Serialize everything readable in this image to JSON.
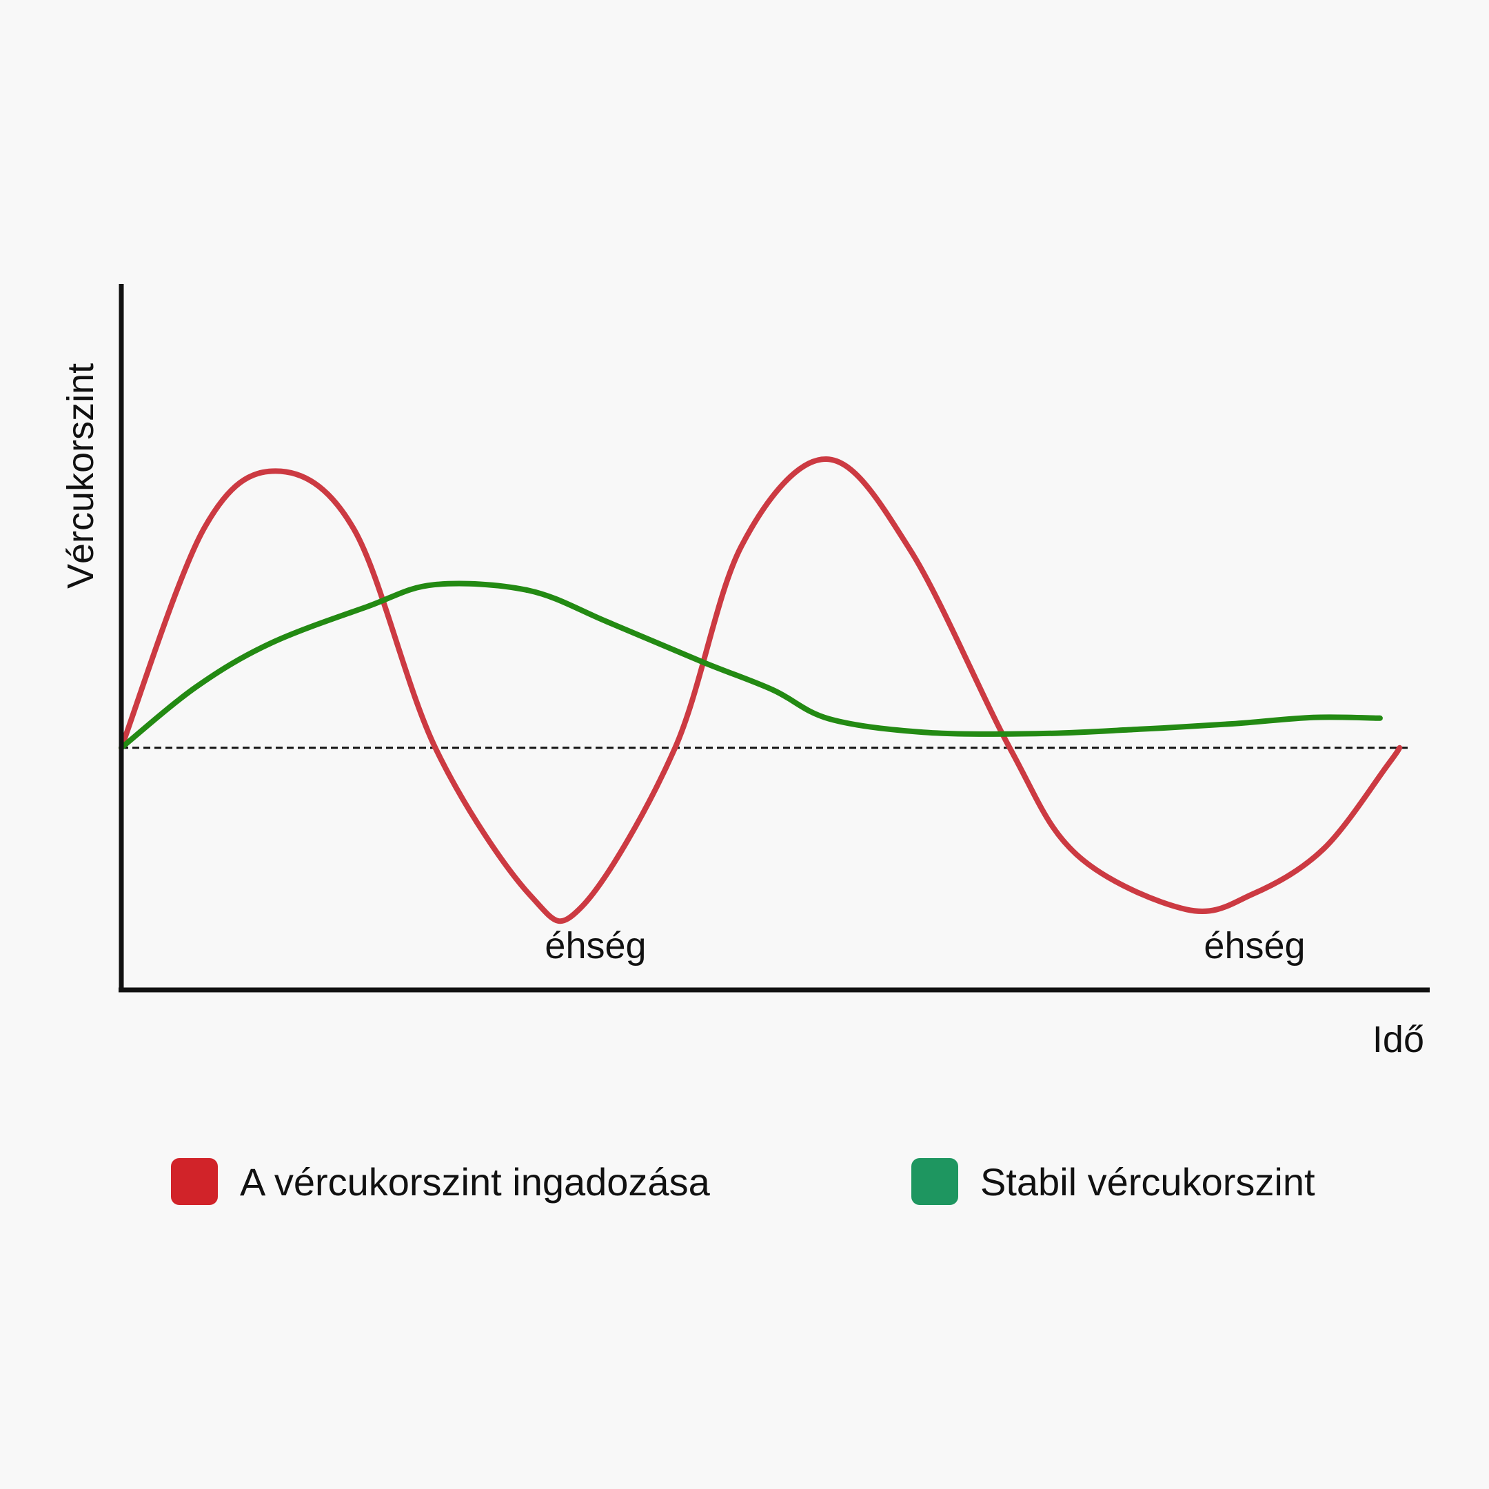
{
  "chart_data": {
    "type": "line",
    "title": "",
    "xlabel": "Idő",
    "ylabel": "Vércukorszint",
    "xlim": [
      0,
      100
    ],
    "ylim": [
      0,
      100
    ],
    "grid": false,
    "legend_position": "bottom",
    "reference_line": {
      "y": 34.3,
      "style": "dashed",
      "color": "#111111"
    },
    "series": [
      {
        "name": "A vércukorszint ingadozása",
        "color": "#cc3a42",
        "x": [
          0,
          6.3,
          11.8,
          17.8,
          24,
          31.3,
          35.2,
          42.3,
          47.4,
          53.9,
          60.3,
          67.9,
          73,
          81.4,
          86.5,
          91.9,
          96.8,
          97.7
        ],
        "y": [
          34.3,
          65.3,
          73.5,
          65.2,
          34.3,
          13.3,
          11.8,
          34.2,
          62.9,
          75.2,
          62.3,
          34.3,
          19.2,
          11.4,
          13.6,
          20,
          31.9,
          34.3
        ]
      },
      {
        "name": "Stabil vércukorszint",
        "color": "#238a13",
        "x": [
          0,
          5.7,
          11.4,
          18.8,
          23.9,
          31.1,
          37.2,
          44.5,
          49.8,
          54.1,
          61.3,
          69.9,
          77.5,
          84.9,
          91.1,
          96.2
        ],
        "y": [
          34.3,
          42.9,
          49.1,
          54.3,
          57.4,
          56.6,
          52.1,
          46.4,
          42.5,
          38.4,
          36.5,
          36.3,
          36.9,
          37.7,
          38.6,
          38.5
        ]
      }
    ],
    "annotations": [
      {
        "text": "éhség",
        "x": 36.1,
        "y": 4.2
      },
      {
        "text": "éhség",
        "x": 86.6,
        "y": 4.2
      }
    ]
  },
  "legend": {
    "items": [
      {
        "label": "A vércukorszint ingadozása",
        "color": "#d12329"
      },
      {
        "label": "Stabil vércukorszint",
        "color": "#1e9660"
      }
    ]
  }
}
